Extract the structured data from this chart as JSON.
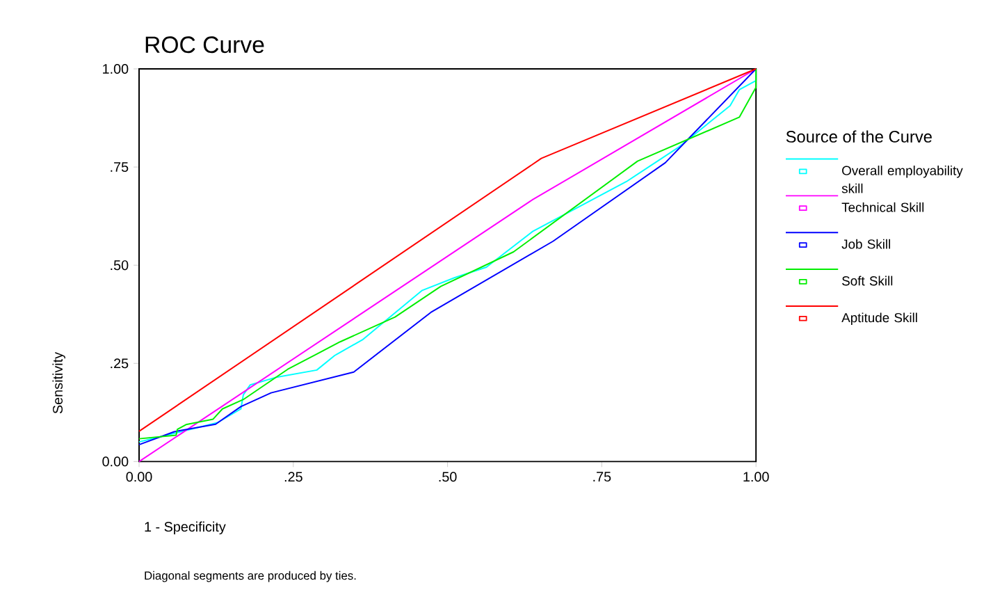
{
  "chart_data": {
    "type": "line",
    "title": "ROC Curve",
    "xlabel": "1 - Specificity",
    "ylabel": "Sensitivity",
    "legend_title": "Source of the Curve",
    "legend": "right",
    "xlim": [
      0,
      1
    ],
    "ylim": [
      0,
      1
    ],
    "xticks": [
      {
        "value": 0,
        "label": "0.00"
      },
      {
        "value": 0.25,
        "label": ".25"
      },
      {
        "value": 0.5,
        "label": ".50"
      },
      {
        "value": 0.75,
        "label": ".75"
      },
      {
        "value": 1,
        "label": "1.00"
      }
    ],
    "yticks": [
      {
        "value": 0,
        "label": "0.00"
      },
      {
        "value": 0.25,
        "label": ".25"
      },
      {
        "value": 0.5,
        "label": ".50"
      },
      {
        "value": 0.75,
        "label": ".75"
      },
      {
        "value": 1,
        "label": "1.00"
      }
    ],
    "annotations": [
      "Diagonal segments are produced by ties."
    ],
    "series": [
      {
        "name": "Overall employability skill",
        "color": "#00ffff",
        "x": [
          0,
          0.127,
          0.165,
          0.169,
          0.18,
          0.221,
          0.288,
          0.317,
          0.362,
          0.459,
          0.511,
          0.563,
          0.638,
          0.79,
          0.875,
          0.958,
          0.973,
          1,
          1
        ],
        "values": [
          0.05,
          0.099,
          0.134,
          0.17,
          0.195,
          0.214,
          0.233,
          0.27,
          0.31,
          0.436,
          0.468,
          0.495,
          0.586,
          0.713,
          0.801,
          0.906,
          0.947,
          0.97,
          1
        ]
      },
      {
        "name": "Technical Skill",
        "color": "#ff00ff",
        "x": [
          0,
          0.638,
          1
        ],
        "values": [
          0,
          0.667,
          1
        ]
      },
      {
        "name": "Job Skill",
        "color": "#0000ff",
        "x": [
          0,
          0.057,
          0.124,
          0.165,
          0.214,
          0.348,
          0.473,
          0.671,
          0.853,
          1
        ],
        "values": [
          0.043,
          0.076,
          0.095,
          0.14,
          0.175,
          0.228,
          0.38,
          0.561,
          0.761,
          1
        ]
      },
      {
        "name": "Soft Skill",
        "color": "#00ee00",
        "x": [
          0,
          0.06,
          0.062,
          0.076,
          0.12,
          0.135,
          0.169,
          0.241,
          0.326,
          0.415,
          0.489,
          0.607,
          0.808,
          0.973,
          1,
          1
        ],
        "values": [
          0.058,
          0.067,
          0.082,
          0.094,
          0.108,
          0.134,
          0.158,
          0.235,
          0.305,
          0.368,
          0.446,
          0.534,
          0.765,
          0.877,
          0.953,
          1
        ]
      },
      {
        "name": "Aptitude Skill",
        "color": "#ff0000",
        "x": [
          0,
          0.652,
          1
        ],
        "values": [
          0.077,
          0.772,
          1
        ]
      }
    ]
  }
}
